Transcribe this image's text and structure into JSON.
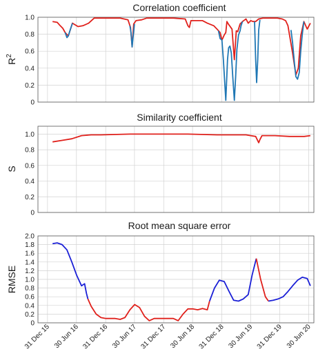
{
  "colors": {
    "red": "#e0201b",
    "blue": "#1f77b4",
    "dark_blue": "#1a1fd6"
  },
  "x_ticks": [
    "31 Dec 15",
    "30 Jun 16",
    "31 Dec 16",
    "30 Jun 17",
    "31 Dec 17",
    "30 Jun 18",
    "31 Dec 18",
    "30 Jun 19",
    "31 Dec 19",
    "30 Jun 20"
  ],
  "chart_data": [
    {
      "type": "line",
      "title": "Correlation coefficient",
      "ylabel": "R",
      "ylabel_sup": "2",
      "xlabel": "",
      "ylim": [
        0,
        1.0
      ],
      "yticks": [
        "0",
        "0.2",
        "0.4",
        "0.6",
        "0.8",
        "1.0"
      ],
      "grid": true,
      "series": [
        {
          "color": "#e0201b",
          "x": [
            "2016-02-01",
            "2016-03-01",
            "2016-03-20",
            "2016-04-05",
            "2016-04-20",
            "2016-05-10",
            "2016-06-05",
            "2016-07-10",
            "2016-08-10",
            "2016-09-15",
            "2016-10-20",
            "2016-12-01",
            "2017-02-01",
            "2017-04-01",
            "2017-05-20",
            "2017-06-05",
            "2017-06-15",
            "2017-06-25",
            "2017-07-10",
            "2017-08-15",
            "2017-09-15",
            "2017-11-01",
            "2018-01-01",
            "2018-03-01",
            "2018-05-15",
            "2018-06-01",
            "2018-06-10",
            "2018-06-20",
            "2018-07-10",
            "2018-08-01",
            "2018-09-01",
            "2018-10-01",
            "2018-11-10",
            "2018-12-01",
            "2018-12-20",
            "2019-01-01",
            "2019-01-15",
            "2019-01-25",
            "2019-02-01",
            "2019-02-10",
            "2019-03-05",
            "2019-03-20",
            "2019-04-01",
            "2019-04-10",
            "2019-04-25",
            "2019-05-10",
            "2019-06-01",
            "2019-06-15",
            "2019-07-01",
            "2019-07-15",
            "2019-08-01",
            "2019-08-20",
            "2019-09-15",
            "2019-11-01",
            "2019-12-15",
            "2020-01-15",
            "2020-02-05",
            "2020-02-20",
            "2020-03-20",
            "2020-04-10",
            "2020-04-25",
            "2020-05-10",
            "2020-05-30",
            "2020-06-20",
            "2020-07-10"
          ],
          "y": [
            0.95,
            0.94,
            0.9,
            0.87,
            0.82,
            0.78,
            0.93,
            0.89,
            0.9,
            0.93,
            0.99,
            0.99,
            0.99,
            0.99,
            0.97,
            0.88,
            0.65,
            0.92,
            0.96,
            0.97,
            0.99,
            0.99,
            0.99,
            0.99,
            0.98,
            0.9,
            0.88,
            0.96,
            0.96,
            0.96,
            0.96,
            0.93,
            0.9,
            0.86,
            0.82,
            0.73,
            0.79,
            0.82,
            0.95,
            0.92,
            0.86,
            0.5,
            0.84,
            0.83,
            0.92,
            0.95,
            0.98,
            0.93,
            0.96,
            0.95,
            0.95,
            0.98,
            0.99,
            0.99,
            0.99,
            0.98,
            0.96,
            0.9,
            0.58,
            0.32,
            0.4,
            0.78,
            0.95,
            0.86,
            0.93
          ]
        },
        {
          "color": "#1f77b4",
          "x": [
            "2016-04-20",
            "2016-05-01",
            "2016-05-10",
            "2016-05-20",
            "2016-06-05"
          ],
          "y": [
            0.82,
            0.76,
            0.78,
            0.84,
            0.93
          ]
        },
        {
          "color": "#1f77b4",
          "x": [
            "2017-06-01",
            "2017-06-08",
            "2017-06-15",
            "2017-06-22",
            "2017-06-30"
          ],
          "y": [
            0.9,
            0.82,
            0.65,
            0.78,
            0.92
          ]
        },
        {
          "color": "#1f77b4",
          "x": [
            "2018-12-10",
            "2018-12-20",
            "2019-01-01",
            "2019-01-10",
            "2019-01-25",
            "2019-02-05",
            "2019-02-12",
            "2019-02-20",
            "2019-03-01",
            "2019-03-10",
            "2019-03-20",
            "2019-03-28",
            "2019-04-05",
            "2019-04-15",
            "2019-04-25",
            "2019-05-01",
            "2019-05-10"
          ],
          "y": [
            0.84,
            0.75,
            0.73,
            0.5,
            0.02,
            0.5,
            0.64,
            0.66,
            0.58,
            0.3,
            0.02,
            0.3,
            0.62,
            0.79,
            0.84,
            0.9,
            0.95
          ]
        },
        {
          "color": "#1f77b4",
          "x": [
            "2019-07-25",
            "2019-08-01",
            "2019-08-07",
            "2019-08-14",
            "2019-08-20",
            "2019-08-28"
          ],
          "y": [
            0.95,
            0.5,
            0.23,
            0.5,
            0.85,
            0.97
          ]
        },
        {
          "color": "#1f77b4",
          "x": [
            "2020-03-10",
            "2020-03-20",
            "2020-04-01",
            "2020-04-10",
            "2020-04-20",
            "2020-05-01",
            "2020-05-10",
            "2020-05-20",
            "2020-05-30"
          ],
          "y": [
            0.85,
            0.7,
            0.45,
            0.3,
            0.27,
            0.35,
            0.6,
            0.8,
            0.95
          ]
        }
      ]
    },
    {
      "type": "line",
      "title": "Similarity coefficient",
      "ylabel": "S",
      "xlabel": "",
      "ylim": [
        0,
        1.1
      ],
      "yticks": [
        "0",
        "0.2",
        "0.4",
        "0.6",
        "0.8",
        "1.0"
      ],
      "grid": true,
      "series": [
        {
          "color": "#e0201b",
          "x": [
            "2016-02-01",
            "2016-04-01",
            "2016-06-01",
            "2016-08-01",
            "2016-10-01",
            "2016-12-01",
            "2017-06-01",
            "2017-12-01",
            "2018-06-01",
            "2018-12-01",
            "2019-06-01",
            "2019-08-01",
            "2019-08-20",
            "2019-08-28",
            "2019-09-10",
            "2019-10-01",
            "2019-12-01",
            "2020-03-01",
            "2020-06-01",
            "2020-07-10"
          ],
          "y": [
            0.9,
            0.92,
            0.94,
            0.98,
            0.99,
            0.99,
            1.0,
            1.0,
            1.0,
            0.99,
            0.99,
            0.97,
            0.89,
            0.93,
            0.98,
            0.98,
            0.98,
            0.97,
            0.97,
            0.98
          ]
        }
      ]
    },
    {
      "type": "line",
      "title": "Root mean square error",
      "ylabel": "RMSE",
      "xlabel": "",
      "ylim": [
        0,
        2.0
      ],
      "yticks": [
        "0",
        "0.2",
        "0.4",
        "0.6",
        "0.8",
        "1.0",
        "1.2",
        "1.4",
        "1.6",
        "1.8",
        "2.0"
      ],
      "grid": true,
      "series": [
        {
          "color": "#1a1fd6",
          "x": [
            "2016-02-01",
            "2016-03-01",
            "2016-04-01",
            "2016-05-01",
            "2016-06-01",
            "2016-07-01",
            "2016-08-01",
            "2016-08-20",
            "2016-09-01",
            "2016-09-10"
          ],
          "y": [
            1.82,
            1.84,
            1.8,
            1.68,
            1.4,
            1.1,
            0.85,
            0.9,
            0.68,
            0.55
          ]
        },
        {
          "color": "#e0201b",
          "x": [
            "2016-09-10",
            "2016-10-01",
            "2016-11-01",
            "2016-12-01",
            "2017-01-01",
            "2017-02-01",
            "2017-03-01",
            "2017-04-01",
            "2017-05-01",
            "2017-06-01",
            "2017-07-01",
            "2017-08-01",
            "2017-09-01",
            "2017-10-01",
            "2017-11-01",
            "2017-12-01",
            "2018-01-01",
            "2018-02-01",
            "2018-03-01",
            "2018-04-01",
            "2018-05-01",
            "2018-06-01",
            "2018-07-01",
            "2018-08-01",
            "2018-09-01",
            "2018-10-01",
            "2018-10-15"
          ],
          "y": [
            0.55,
            0.38,
            0.2,
            0.12,
            0.1,
            0.1,
            0.1,
            0.08,
            0.12,
            0.3,
            0.42,
            0.35,
            0.15,
            0.05,
            0.1,
            0.1,
            0.1,
            0.1,
            0.1,
            0.05,
            0.2,
            0.32,
            0.32,
            0.3,
            0.33,
            0.3,
            0.5
          ]
        },
        {
          "color": "#1a1fd6",
          "x": [
            "2018-10-15",
            "2018-11-15",
            "2018-12-15",
            "2019-01-15",
            "2019-02-15",
            "2019-03-15",
            "2019-04-15",
            "2019-05-15",
            "2019-06-15",
            "2019-07-10",
            "2019-08-05"
          ],
          "y": [
            0.5,
            0.8,
            0.98,
            0.95,
            0.72,
            0.52,
            0.5,
            0.55,
            0.65,
            1.1,
            1.48
          ]
        },
        {
          "color": "#e0201b",
          "x": [
            "2019-08-05",
            "2019-09-01",
            "2019-10-01",
            "2019-10-20"
          ],
          "y": [
            1.48,
            1.0,
            0.6,
            0.5
          ]
        },
        {
          "color": "#1a1fd6",
          "x": [
            "2019-10-20",
            "2019-11-20",
            "2019-12-20",
            "2020-01-20",
            "2020-02-20",
            "2020-03-20",
            "2020-04-20",
            "2020-05-20",
            "2020-06-20",
            "2020-07-10"
          ],
          "y": [
            0.5,
            0.52,
            0.55,
            0.6,
            0.72,
            0.85,
            0.98,
            1.05,
            1.02,
            0.85
          ]
        }
      ]
    }
  ]
}
